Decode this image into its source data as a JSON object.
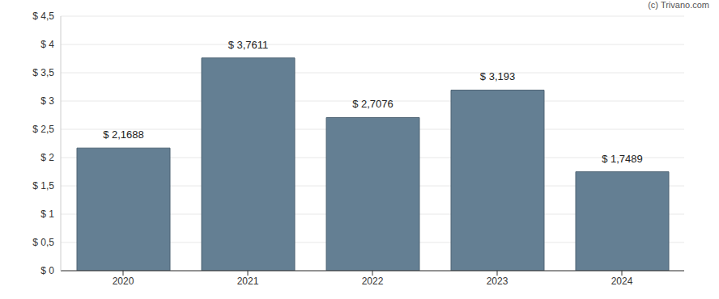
{
  "chart_data": {
    "type": "bar",
    "categories": [
      "2020",
      "2021",
      "2022",
      "2023",
      "2024"
    ],
    "values": [
      2.1688,
      3.7611,
      2.7076,
      3.193,
      1.7489
    ],
    "value_labels": [
      "$ 2,1688",
      "$ 3,7611",
      "$ 2,7076",
      "$ 3,193",
      "$ 1,7489"
    ],
    "data_labels": true,
    "color": "#647f93",
    "ylim": [
      0,
      4.5
    ],
    "yticks": [
      {
        "value": 0,
        "label": "$ 0"
      },
      {
        "value": 0.5,
        "label": "$ 0,5"
      },
      {
        "value": 1,
        "label": "$ 1"
      },
      {
        "value": 1.5,
        "label": "$ 1,5"
      },
      {
        "value": 2,
        "label": "$ 2"
      },
      {
        "value": 2.5,
        "label": "$ 2,5"
      },
      {
        "value": 3,
        "label": "$ 3"
      },
      {
        "value": 3.5,
        "label": "$ 3,5"
      },
      {
        "value": 4,
        "label": "$ 4"
      },
      {
        "value": 4.5,
        "label": "$ 4,5"
      }
    ],
    "grid": true,
    "annotations": [
      "(c) Trivano.com"
    ]
  }
}
